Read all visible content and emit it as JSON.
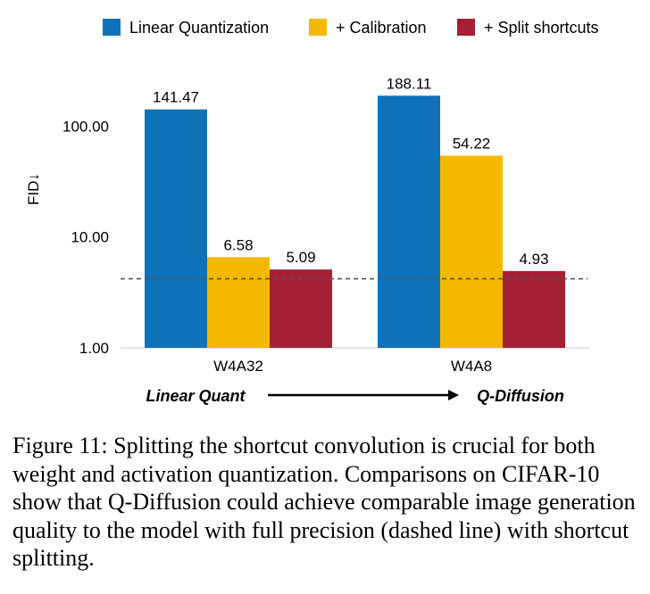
{
  "chart_data": {
    "type": "bar",
    "scale": "log",
    "ylim": [
      1,
      250
    ],
    "ylabel": "FID↓",
    "ytick_labels": [
      "1.00",
      "10.00",
      "100.00"
    ],
    "ytick_values": [
      1,
      10,
      100
    ],
    "grid": false,
    "legend_placement": "top",
    "categories": [
      "W4A32",
      "W4A8"
    ],
    "series": [
      {
        "name": "Linear Quantization",
        "color": "#0f72b8",
        "values": [
          141.47,
          188.11
        ],
        "labels": [
          "141.47",
          "188.11"
        ]
      },
      {
        "name": "+ Calibration",
        "color": "#f5b800",
        "values": [
          6.58,
          54.22
        ],
        "labels": [
          "6.58",
          "54.22"
        ]
      },
      {
        "name": "+ Split shortcuts",
        "color": "#a51f35",
        "values": [
          5.09,
          4.93
        ],
        "labels": [
          "5.09",
          "4.93"
        ]
      }
    ],
    "reference_line": {
      "style": "dashed",
      "color": "#555555",
      "value": 4.2
    },
    "annotation": {
      "left_label": "Linear Quant",
      "right_label": "Q-Diffusion",
      "arrow": "right"
    }
  },
  "caption": "Figure 11: Splitting the shortcut convolution is crucial for both weight and activation quantization. Comparisons on CIFAR-10 show that Q-Diffusion could achieve comparable image generation quality to the model with full precision (dashed line) with shortcut splitting."
}
